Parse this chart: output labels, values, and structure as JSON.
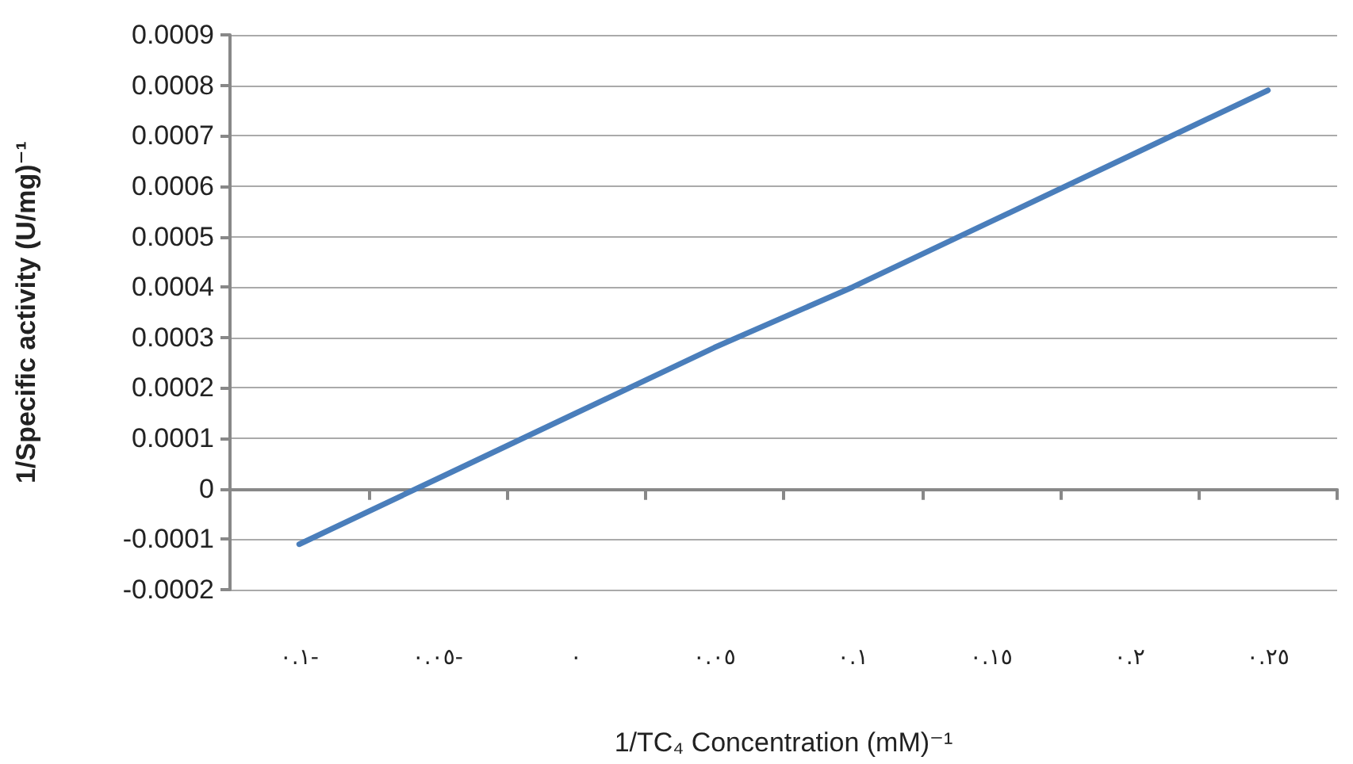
{
  "chart_data": {
    "type": "line",
    "xlabel": "1/TC₄ Concentration (mM)⁻¹",
    "ylabel": "1/Specific activity (U/mg)⁻¹",
    "categories": [
      "٠.١-",
      "٠.٠٥-",
      "٠",
      "٠.٠٥",
      "٠.١",
      "٠.١٥",
      "٠.٢",
      "٠.٢٥"
    ],
    "series": [
      {
        "color": "#4a7ebb",
        "values": [
          -0.00011,
          2e-05,
          0.00015,
          0.00028,
          0.0004,
          0.00053,
          0.00066,
          0.00079
        ]
      }
    ],
    "ylim": [
      -0.0002,
      0.0009
    ],
    "yticks": [
      -0.0002,
      -0.0001,
      0,
      0.0001,
      0.0002,
      0.0003,
      0.0004,
      0.0005,
      0.0006,
      0.0007,
      0.0008,
      0.0009
    ],
    "grid": "y",
    "marker": "none",
    "line_style": "solid"
  }
}
